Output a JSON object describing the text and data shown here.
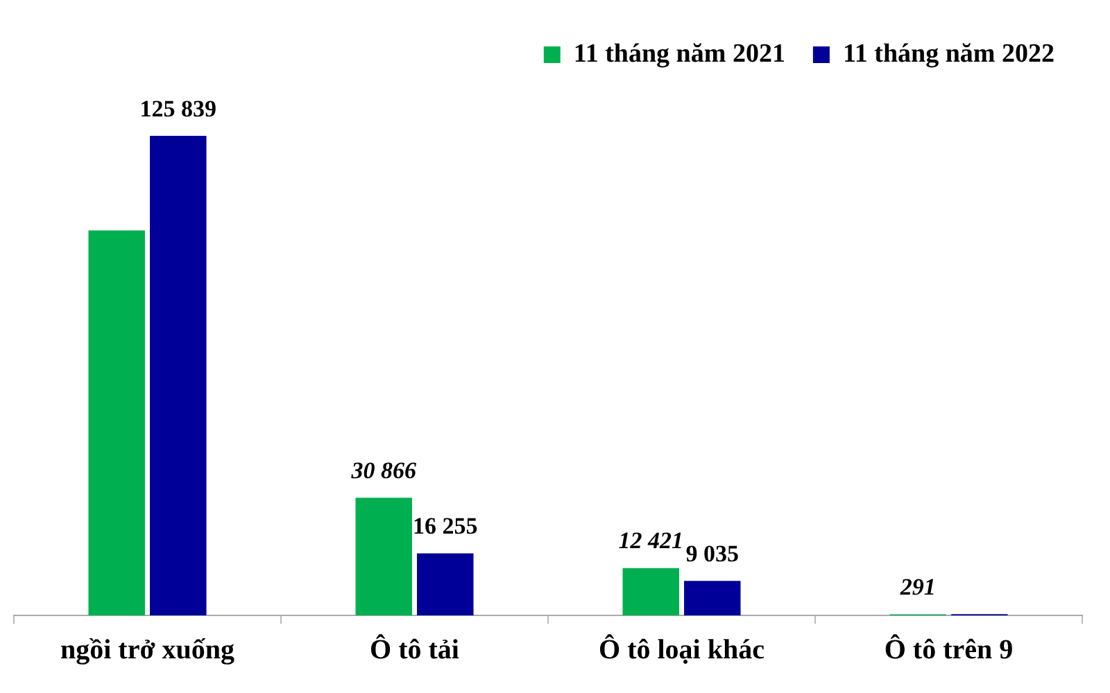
{
  "chart_data": {
    "type": "bar",
    "categories": [
      "ngồi trở xuống",
      "Ô tô tải",
      "Ô tô loại khác",
      "Ô tô trên 9"
    ],
    "series": [
      {
        "name": "11 tháng năm 2021",
        "color": "#00b050",
        "values": [
          101000,
          30866,
          12421,
          291
        ],
        "value_labels": [
          null,
          "30 866",
          "12 421",
          "291"
        ]
      },
      {
        "name": "11 tháng năm 2022",
        "color": "#000099",
        "values": [
          125839,
          16255,
          9035,
          300
        ],
        "value_labels": [
          "125 839",
          "16 255",
          "9 035",
          null
        ]
      }
    ],
    "legend": "top right",
    "grid": false,
    "tick_labels": "x"
  }
}
